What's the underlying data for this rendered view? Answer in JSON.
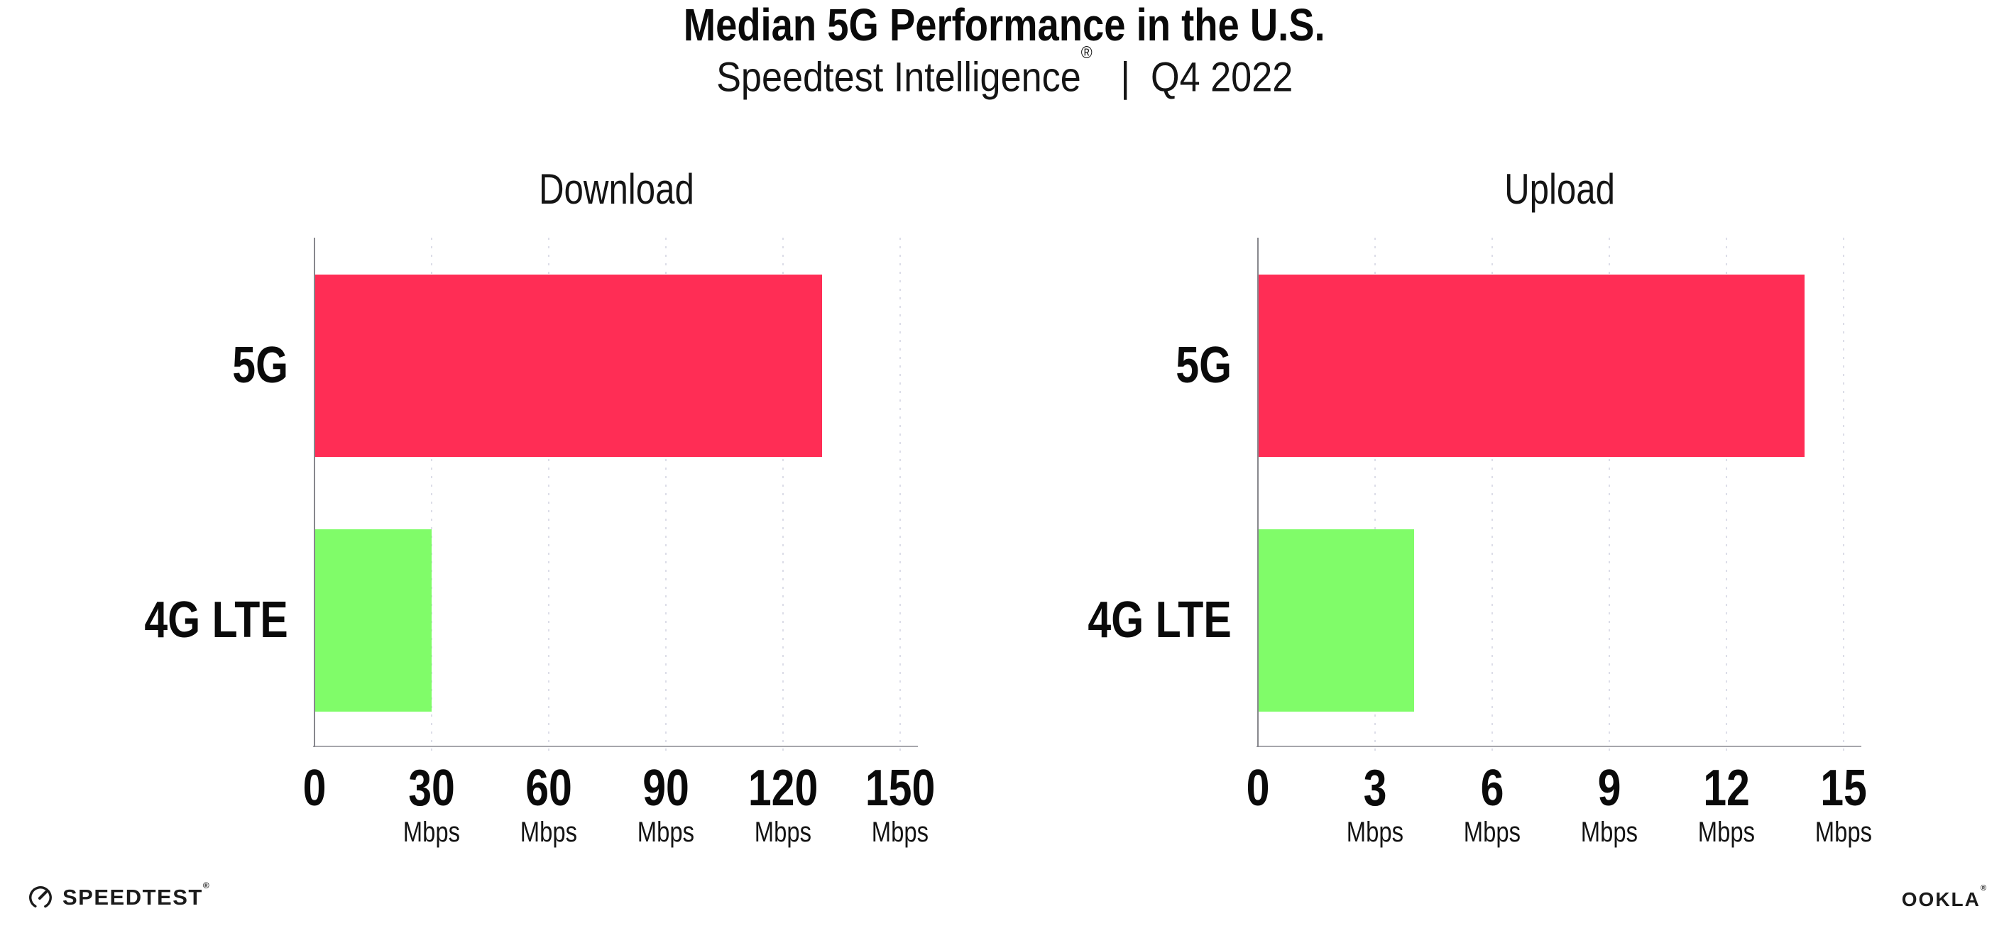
{
  "header": {
    "title": "Median 5G Performance in the U.S.",
    "subtitle_brand": "Speedtest Intelligence",
    "subtitle_reg": "®",
    "subtitle_rest": "|  Q4 2022"
  },
  "chart_data": [
    {
      "type": "bar",
      "orientation": "horizontal",
      "title": "Download",
      "categories": [
        "5G",
        "4G LTE"
      ],
      "values": [
        130,
        30
      ],
      "unit": "Mbps",
      "xlabel": "",
      "ylabel": "",
      "xlim": [
        0,
        150
      ],
      "ticks": [
        0,
        30,
        60,
        90,
        120,
        150
      ],
      "bar_colors": [
        "#FF2D55",
        "#80FC69"
      ],
      "grid": "dotted-vertical",
      "legend": "none"
    },
    {
      "type": "bar",
      "orientation": "horizontal",
      "title": "Upload",
      "categories": [
        "5G",
        "4G LTE"
      ],
      "values": [
        14,
        4
      ],
      "unit": "Mbps",
      "xlabel": "",
      "ylabel": "",
      "xlim": [
        0,
        15
      ],
      "ticks": [
        0,
        3,
        6,
        9,
        12,
        15
      ],
      "bar_colors": [
        "#FF2D55",
        "#80FC69"
      ],
      "grid": "dotted-vertical",
      "legend": "none"
    }
  ],
  "footer": {
    "speedtest_label": "SPEEDTEST",
    "speedtest_reg": "®",
    "ookla_label": "OOKLA",
    "ookla_reg": "®"
  },
  "colors": {
    "bar_5g": "#FF2D55",
    "bar_4g_lte": "#80FC69",
    "grid": "#dcdde8",
    "y_axis": "#87878d",
    "x_axis": "#a6a6ac",
    "text": "#111111"
  }
}
